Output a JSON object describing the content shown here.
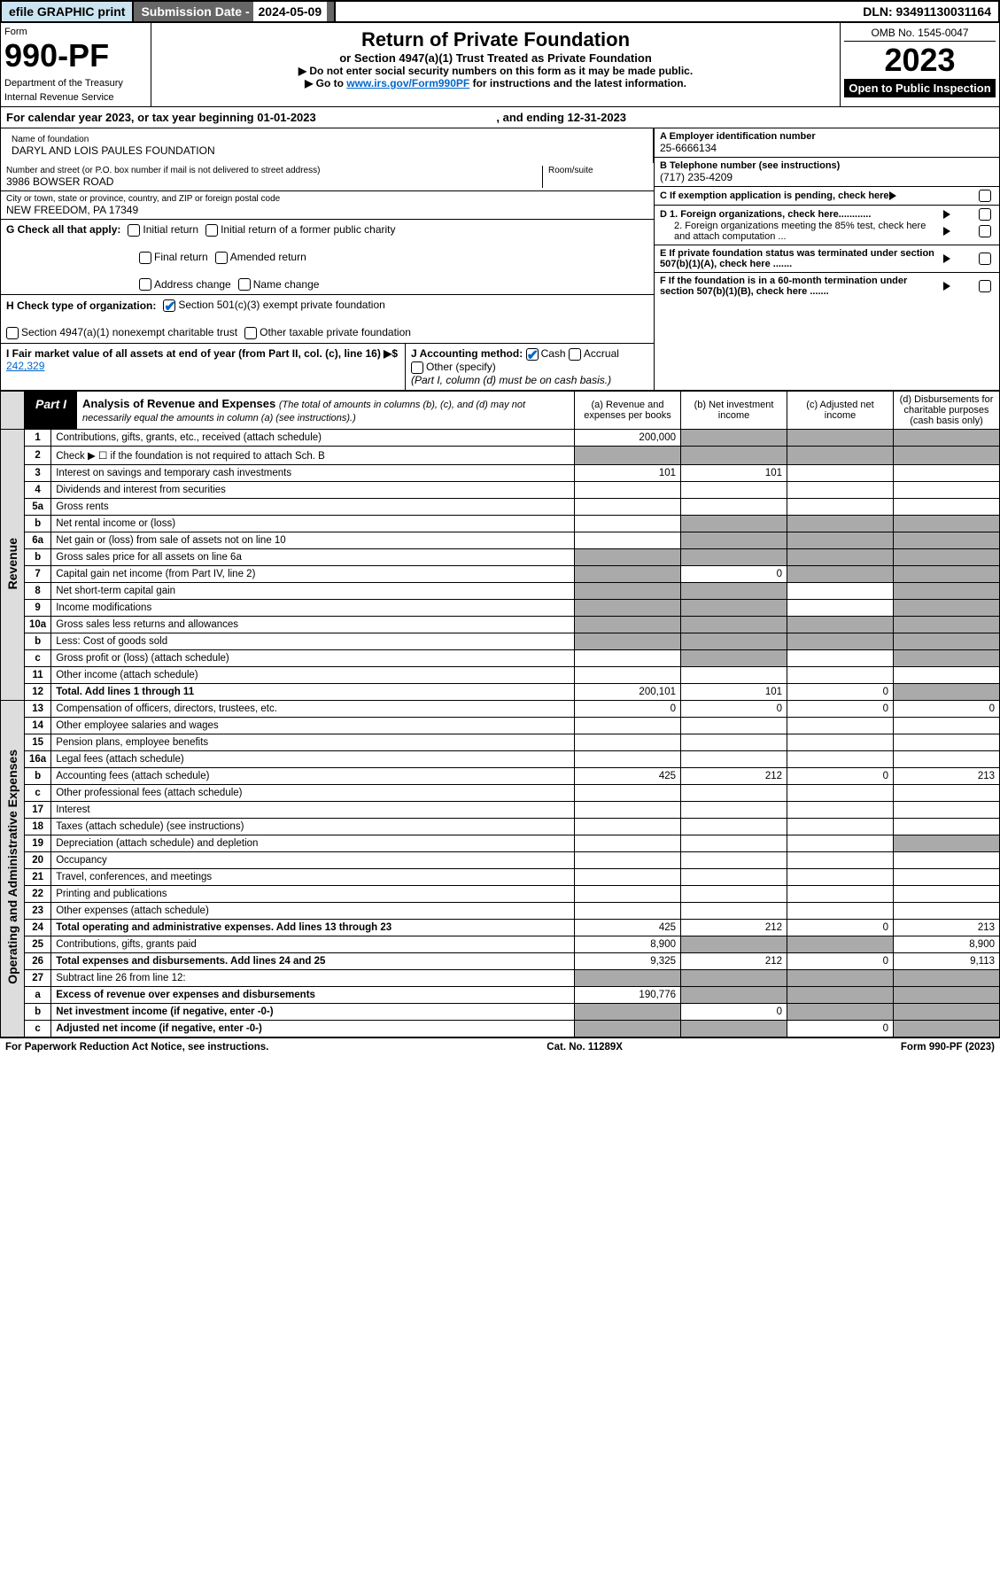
{
  "topbar": {
    "efile": "efile GRAPHIC print",
    "sub_label": "Submission Date - ",
    "sub_date": "2024-05-09",
    "dln": "DLN: 93491130031164"
  },
  "header": {
    "form_word": "Form",
    "form_num": "990-PF",
    "dept": "Department of the Treasury",
    "irs": "Internal Revenue Service",
    "title": "Return of Private Foundation",
    "subtitle": "or Section 4947(a)(1) Trust Treated as Private Foundation",
    "instr1": "▶ Do not enter social security numbers on this form as it may be made public.",
    "instr2_pre": "▶ Go to ",
    "instr2_link": "www.irs.gov/Form990PF",
    "instr2_post": " for instructions and the latest information.",
    "omb": "OMB No. 1545-0047",
    "year": "2023",
    "open": "Open to Public Inspection"
  },
  "cal": {
    "text_pre": "For calendar year 2023, or tax year beginning ",
    "begin": "01-01-2023",
    "mid": " , and ending ",
    "end": "12-31-2023"
  },
  "info": {
    "name_lbl": "Name of foundation",
    "name": "DARYL AND LOIS PAULES FOUNDATION",
    "addr_lbl": "Number and street (or P.O. box number if mail is not delivered to street address)",
    "addr": "3986 BOWSER ROAD",
    "room_lbl": "Room/suite",
    "city_lbl": "City or town, state or province, country, and ZIP or foreign postal code",
    "city": "NEW FREEDOM, PA  17349",
    "a_lbl": "A Employer identification number",
    "a_val": "25-6666134",
    "b_lbl": "B Telephone number (see instructions)",
    "b_val": "(717) 235-4209",
    "c_lbl": "C If exemption application is pending, check here",
    "d1_lbl": "D 1. Foreign organizations, check here............",
    "d2_lbl": "2. Foreign organizations meeting the 85% test, check here and attach computation ...",
    "e_lbl": "E  If private foundation status was terminated under section 507(b)(1)(A), check here .......",
    "f_lbl": "F  If the foundation is in a 60-month termination under section 507(b)(1)(B), check here .......",
    "g_lbl": "G Check all that apply:",
    "g_opts": [
      "Initial return",
      "Initial return of a former public charity",
      "Final return",
      "Amended return",
      "Address change",
      "Name change"
    ],
    "h_lbl": "H Check type of organization:",
    "h_opts": [
      "Section 501(c)(3) exempt private foundation",
      "Section 4947(a)(1) nonexempt charitable trust",
      "Other taxable private foundation"
    ],
    "i_lbl": "I Fair market value of all assets at end of year (from Part II, col. (c), line 16) ▶$ ",
    "i_val": "242,329",
    "j_lbl": "J Accounting method:",
    "j_cash": "Cash",
    "j_accrual": "Accrual",
    "j_other": "Other (specify)",
    "j_note": "(Part I, column (d) must be on cash basis.)"
  },
  "part1": {
    "label": "Part I",
    "title": "Analysis of Revenue and Expenses",
    "sub": "(The total of amounts in columns (b), (c), and (d) may not necessarily equal the amounts in column (a) (see instructions).)",
    "col_a": "(a)   Revenue and expenses per books",
    "col_b": "(b)  Net investment income",
    "col_c": "(c)  Adjusted net income",
    "col_d": "(d)  Disbursements for charitable purposes (cash basis only)"
  },
  "side": {
    "rev": "Revenue",
    "exp": "Operating and Administrative Expenses"
  },
  "rows": {
    "r1": {
      "n": "1",
      "d": "Contributions, gifts, grants, etc., received (attach schedule)",
      "a": "200,000"
    },
    "r2": {
      "n": "2",
      "d": "Check ▶ ☐ if the foundation is not required to attach Sch. B"
    },
    "r3": {
      "n": "3",
      "d": "Interest on savings and temporary cash investments",
      "a": "101",
      "b": "101"
    },
    "r4": {
      "n": "4",
      "d": "Dividends and interest from securities"
    },
    "r5a": {
      "n": "5a",
      "d": "Gross rents"
    },
    "r5b": {
      "n": "b",
      "d": "Net rental income or (loss)"
    },
    "r6a": {
      "n": "6a",
      "d": "Net gain or (loss) from sale of assets not on line 10"
    },
    "r6b": {
      "n": "b",
      "d": "Gross sales price for all assets on line 6a"
    },
    "r7": {
      "n": "7",
      "d": "Capital gain net income (from Part IV, line 2)",
      "b": "0"
    },
    "r8": {
      "n": "8",
      "d": "Net short-term capital gain"
    },
    "r9": {
      "n": "9",
      "d": "Income modifications"
    },
    "r10a": {
      "n": "10a",
      "d": "Gross sales less returns and allowances"
    },
    "r10b": {
      "n": "b",
      "d": "Less: Cost of goods sold"
    },
    "r10c": {
      "n": "c",
      "d": "Gross profit or (loss) (attach schedule)"
    },
    "r11": {
      "n": "11",
      "d": "Other income (attach schedule)"
    },
    "r12": {
      "n": "12",
      "d": "Total. Add lines 1 through 11",
      "a": "200,101",
      "b": "101",
      "c": "0"
    },
    "r13": {
      "n": "13",
      "d": "Compensation of officers, directors, trustees, etc.",
      "a": "0",
      "b": "0",
      "c": "0",
      "e": "0"
    },
    "r14": {
      "n": "14",
      "d": "Other employee salaries and wages"
    },
    "r15": {
      "n": "15",
      "d": "Pension plans, employee benefits"
    },
    "r16a": {
      "n": "16a",
      "d": "Legal fees (attach schedule)"
    },
    "r16b": {
      "n": "b",
      "d": "Accounting fees (attach schedule)",
      "a": "425",
      "b": "212",
      "c": "0",
      "e": "213"
    },
    "r16c": {
      "n": "c",
      "d": "Other professional fees (attach schedule)"
    },
    "r17": {
      "n": "17",
      "d": "Interest"
    },
    "r18": {
      "n": "18",
      "d": "Taxes (attach schedule) (see instructions)"
    },
    "r19": {
      "n": "19",
      "d": "Depreciation (attach schedule) and depletion"
    },
    "r20": {
      "n": "20",
      "d": "Occupancy"
    },
    "r21": {
      "n": "21",
      "d": "Travel, conferences, and meetings"
    },
    "r22": {
      "n": "22",
      "d": "Printing and publications"
    },
    "r23": {
      "n": "23",
      "d": "Other expenses (attach schedule)"
    },
    "r24": {
      "n": "24",
      "d": "Total operating and administrative expenses. Add lines 13 through 23",
      "a": "425",
      "b": "212",
      "c": "0",
      "e": "213"
    },
    "r25": {
      "n": "25",
      "d": "Contributions, gifts, grants paid",
      "a": "8,900",
      "e": "8,900"
    },
    "r26": {
      "n": "26",
      "d": "Total expenses and disbursements. Add lines 24 and 25",
      "a": "9,325",
      "b": "212",
      "c": "0",
      "e": "9,113"
    },
    "r27": {
      "n": "27",
      "d": "Subtract line 26 from line 12:"
    },
    "r27a": {
      "n": "a",
      "d": "Excess of revenue over expenses and disbursements",
      "a": "190,776"
    },
    "r27b": {
      "n": "b",
      "d": "Net investment income (if negative, enter -0-)",
      "b": "0"
    },
    "r27c": {
      "n": "c",
      "d": "Adjusted net income (if negative, enter -0-)",
      "c": "0"
    }
  },
  "footer": {
    "left": "For Paperwork Reduction Act Notice, see instructions.",
    "mid": "Cat. No. 11289X",
    "right": "Form 990-PF (2023)"
  }
}
